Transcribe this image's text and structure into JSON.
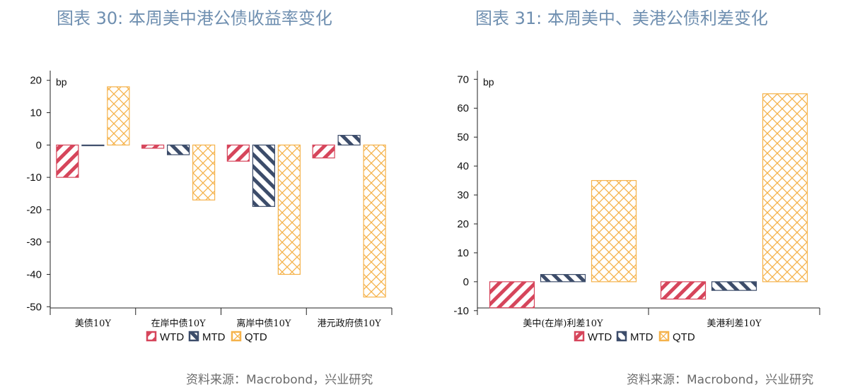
{
  "colors": {
    "wtd": "#d6455b",
    "mtd": "#3c4c6a",
    "qtd": "#f5b24a",
    "title": "#6f8fb0"
  },
  "chart_data": [
    {
      "type": "bar",
      "title": "图表 30: 本周美中港公债收益率变化",
      "unit": "bp",
      "categories": [
        "美债10Y",
        "在岸中债10Y",
        "离岸中债10Y",
        "港元政府债10Y"
      ],
      "series": [
        {
          "name": "WTD",
          "values": [
            -10,
            -1,
            -5,
            -4
          ]
        },
        {
          "name": "MTD",
          "values": [
            0,
            -3,
            -19,
            3
          ]
        },
        {
          "name": "QTD",
          "values": [
            18,
            -17,
            -40,
            -47
          ]
        }
      ],
      "ylim": [
        -53,
        23
      ],
      "yticks": [
        20,
        10,
        0,
        -10,
        -20,
        -30,
        -40,
        -50
      ],
      "legend": [
        "WTD",
        "MTD",
        "QTD"
      ],
      "grid": false,
      "source": "资料来源：Macrobond，兴业研究"
    },
    {
      "type": "bar",
      "title": "图表 31: 本周美中、美港公债利差变化",
      "unit": "bp",
      "categories": [
        "美中(在岸)利差10Y",
        "美港利差10Y"
      ],
      "series": [
        {
          "name": "WTD",
          "values": [
            -9,
            -6
          ]
        },
        {
          "name": "MTD",
          "values": [
            2.5,
            -3
          ]
        },
        {
          "name": "QTD",
          "values": [
            35,
            65
          ]
        }
      ],
      "ylim": [
        -12,
        73
      ],
      "yticks": [
        70,
        60,
        50,
        40,
        30,
        20,
        10,
        0,
        -10
      ],
      "legend": [
        "WTD",
        "MTD",
        "QTD"
      ],
      "grid": false,
      "source": "资料来源：Macrobond，兴业研究"
    }
  ]
}
